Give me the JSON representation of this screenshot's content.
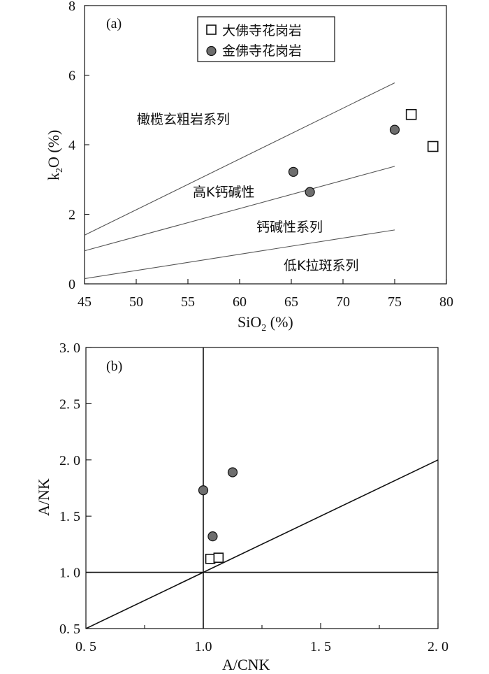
{
  "chart_data": [
    {
      "type": "scatter",
      "panel_label": "(a)",
      "xlabel": "SiO2 (%)",
      "xlabel_main": "SiO",
      "xlabel_sub": "2",
      "xlabel_tail": " (%)",
      "ylabel": "k2O (%)",
      "ylabel_main": "k",
      "ylabel_sub": "2",
      "ylabel_tail": "O (%)",
      "xlim": [
        45,
        80
      ],
      "ylim": [
        0,
        8
      ],
      "x_ticks": [
        45,
        50,
        55,
        60,
        65,
        70,
        75,
        80
      ],
      "x_tick_labels": [
        "45",
        "50",
        "55",
        "60",
        "65",
        "70",
        "75",
        "80"
      ],
      "y_ticks": [
        0,
        2,
        4,
        6,
        8
      ],
      "y_tick_labels": [
        "0",
        "2",
        "4",
        "6",
        "8"
      ],
      "legend": [
        {
          "marker": "square",
          "label": "大佛寺花岗岩"
        },
        {
          "marker": "circle",
          "label": "金佛寺花岗岩"
        }
      ],
      "series": [
        {
          "name": "大佛寺花岗岩",
          "marker": "square",
          "points": [
            [
              76.6,
              4.87
            ],
            [
              78.7,
              3.95
            ]
          ]
        },
        {
          "name": "金佛寺花岗岩",
          "marker": "circle",
          "points": [
            [
              65.2,
              3.22
            ],
            [
              66.8,
              2.64
            ],
            [
              75.0,
              4.43
            ]
          ]
        }
      ],
      "boundary_lines": [
        {
          "x": [
            45,
            75
          ],
          "y": [
            1.4,
            5.78
          ]
        },
        {
          "x": [
            45,
            75
          ],
          "y": [
            0.95,
            3.38
          ]
        },
        {
          "x": [
            45,
            75
          ],
          "y": [
            0.15,
            1.55
          ]
        }
      ],
      "region_labels": [
        {
          "text": "橄榄玄粗岩系列",
          "x": 52,
          "y": 4.75
        },
        {
          "text": "高K钙碱性",
          "x": 55.5,
          "y": 2.6
        },
        {
          "text": "钙碱性系列",
          "x": 62.5,
          "y": 1.6
        },
        {
          "text": "低K拉斑系列",
          "x": 69,
          "y": 0.5
        }
      ]
    },
    {
      "type": "scatter",
      "panel_label": "(b)",
      "xlabel": "A/CNK",
      "ylabel": "A/NK",
      "xlim": [
        0.5,
        2.0
      ],
      "ylim": [
        0.5,
        3.0
      ],
      "x_ticks": [
        0.5,
        1.0,
        1.5,
        2.0
      ],
      "x_tick_labels": [
        "0. 5",
        "1.0",
        "1. 5",
        "2. 0"
      ],
      "x_minor_ticks": [
        0.75,
        1.25,
        1.75
      ],
      "y_ticks": [
        0.5,
        1.0,
        1.5,
        2.0,
        2.5,
        3.0
      ],
      "y_tick_labels": [
        "0. 5",
        "1. 0",
        "1. 5",
        "2. 0",
        "2. 5",
        "3. 0"
      ],
      "series": [
        {
          "name": "大佛寺花岗岩",
          "marker": "square",
          "points": [
            [
              1.03,
              1.12
            ],
            [
              1.065,
              1.13
            ]
          ]
        },
        {
          "name": "金佛寺花岗岩",
          "marker": "circle",
          "points": [
            [
              1.0,
              1.73
            ],
            [
              1.125,
              1.89
            ],
            [
              1.04,
              1.32
            ]
          ]
        }
      ],
      "reference_lines": [
        {
          "x": [
            1.0,
            1.0
          ],
          "y": [
            0.5,
            3.0
          ]
        },
        {
          "x": [
            0.5,
            2.0
          ],
          "y": [
            1.0,
            1.0
          ]
        },
        {
          "x": [
            0.5,
            2.0
          ],
          "y": [
            0.5,
            2.0
          ]
        }
      ]
    }
  ]
}
